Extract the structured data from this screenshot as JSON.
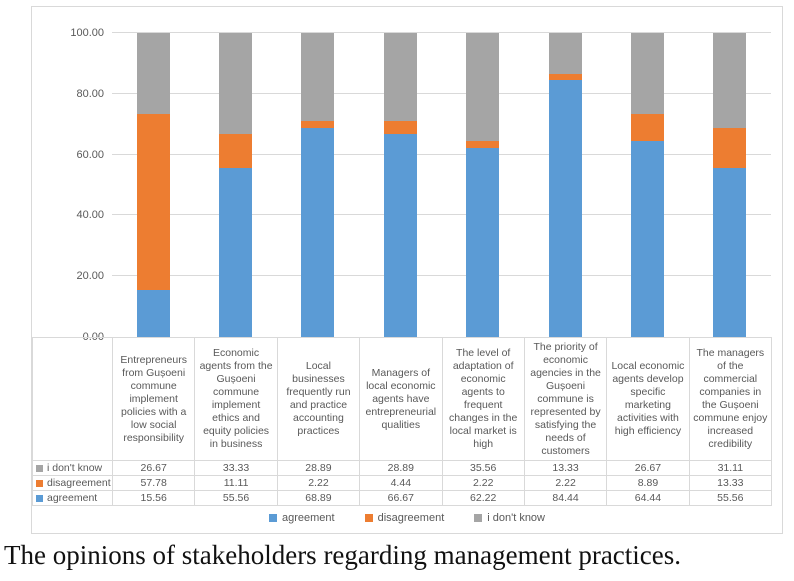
{
  "caption": "The opinions of stakeholders regarding management practices.",
  "colors": {
    "agreement": "#5B9BD5",
    "disagreement": "#ED7D31",
    "dont_know": "#A5A5A5",
    "grid": "#D9D9D9",
    "text": "#595959"
  },
  "chart_data": {
    "type": "bar",
    "stacked": true,
    "title": "",
    "xlabel": "",
    "ylabel": "",
    "ylim": [
      0,
      100
    ],
    "grid": true,
    "legend_position": "bottom",
    "yticks": [
      "100.00",
      "80.00",
      "60.00",
      "40.00",
      "20.00",
      "0.00"
    ],
    "categories": [
      "Entrepreneurs from Gușoeni commune implement policies with a low social responsibility",
      "Economic agents from the Gușoeni commune implement ethics and equity policies in business",
      "Local businesses frequently run and practice accounting practices",
      "Managers of local economic agents have entrepreneurial qualities",
      "The level of adaptation of economic agents to frequent changes in the local market is high",
      "The priority of economic agencies in the Gușoeni commune is represented by satisfying the needs of customers",
      "Local economic agents develop specific marketing activities with high efficiency",
      "The managers of the commercial companies in the Gușoeni commune enjoy increased credibility"
    ],
    "series": [
      {
        "name": "agreement",
        "color": "#5B9BD5",
        "values": [
          15.56,
          55.56,
          68.89,
          66.67,
          62.22,
          84.44,
          64.44,
          55.56
        ]
      },
      {
        "name": "disagreement",
        "color": "#ED7D31",
        "values": [
          57.78,
          11.11,
          2.22,
          4.44,
          2.22,
          2.22,
          8.89,
          13.33
        ]
      },
      {
        "name": "i don't know",
        "color": "#A5A5A5",
        "values": [
          26.67,
          33.33,
          28.89,
          28.89,
          35.56,
          13.33,
          26.67,
          31.11
        ]
      }
    ],
    "data_table_row_order": [
      "i don't know",
      "disagreement",
      "agreement"
    ],
    "legend": [
      "agreement",
      "disagreement",
      "i don't know"
    ]
  }
}
